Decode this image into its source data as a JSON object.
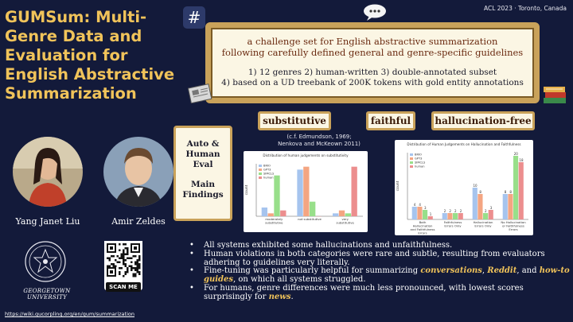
{
  "title": "GUMSum: Multi-Genre Data and Evaluation for English Abstractive Summarization",
  "venue": "ACL 2023 · Toronto, Canada",
  "scroll": {
    "line1": "a challenge set for English abstractive summarization",
    "line2": "following carefully defined general and genre-specific guidelines",
    "line3": "1) 12 genres 2) human-written 3) double-annotated subset",
    "line4": "4) based on a UD treebank of 200K tokens with gold entity annotations"
  },
  "chips": {
    "c1": "substitutive",
    "c2": "faithful",
    "c3": "hallucination-free"
  },
  "citation": {
    "l1": "(c.f. Edmundson, 1969;",
    "l2": "Nenkova and McKeown 2011)"
  },
  "eval_box": {
    "l1": "Auto &",
    "l2": "Human",
    "l3": "Eval",
    "l4": "Main",
    "l5": "Findings"
  },
  "people": {
    "p1": "Yang Janet Liu",
    "p2": "Amir Zeldes"
  },
  "university": "GEORGETOWN UNIVERSITY",
  "scan_label": "SCAN ME",
  "url": "https://wiki.gucorpling.org/en/gum/summarization",
  "icons": {
    "hash": "hash-icon",
    "speech": "speech-bubble-icon",
    "newspaper": "newspaper-icon",
    "books": "books-icon"
  },
  "colors": {
    "accent": "#f0c35a",
    "bg": "#131a3a",
    "blue": "#a6c4ee",
    "orange": "#f4a582",
    "green": "#98df8a",
    "red": "#ec8e8e"
  },
  "bullets": {
    "b1": "All systems exhibited some hallucinations and unfaithfulness.",
    "b2": "Human violations in both categories were rare and subtle, resulting from evaluators adhering to guidelines very literally.",
    "b3_a": "Fine-tuning was particularly helpful for summarizing ",
    "b3_conv": "conversations",
    "b3_sep1": ", ",
    "b3_reddit": "Reddit",
    "b3_sep2": ", and ",
    "b3_howto": "how-to guides",
    "b3_b": ", on which all systems struggled.",
    "b4_a": "For humans, genre differences were much less pronounced, with lowest scores surprisingly for ",
    "b4_news": "news",
    "b4_b": "."
  },
  "chart_data": [
    {
      "type": "bar",
      "title": "Distribution of human judgements on substitutivity",
      "ylabel": "count",
      "categories": [
        "moderately substitutive",
        "not substitutive",
        "very substitutive"
      ],
      "series": [
        {
          "name": "BRIO",
          "values": [
            3,
            16,
            1
          ]
        },
        {
          "name": "GPT3",
          "values": [
            1,
            17,
            2
          ]
        },
        {
          "name": "SIMCLS",
          "values": [
            14,
            5,
            1
          ]
        },
        {
          "name": "human",
          "values": [
            2,
            0,
            17
          ]
        }
      ],
      "ylim": [
        0,
        18
      ]
    },
    {
      "type": "bar",
      "title": "Distribution of Human Judgements on Hallucination and Faithfulness",
      "ylabel": "count",
      "categories": [
        "Both Hallucination and Faithfulness Errors",
        "Faithfulness Errors Only",
        "Hallucination Errors Only",
        "No Hallucination or Faithfulness Errors"
      ],
      "series": [
        {
          "name": "BRIO",
          "values": [
            4,
            2,
            10,
            8
          ]
        },
        {
          "name": "GPT3",
          "values": [
            4,
            2,
            8,
            8
          ]
        },
        {
          "name": "SIMCLS",
          "values": [
            3,
            2,
            2,
            20
          ]
        },
        {
          "name": "human",
          "values": [
            1,
            2,
            3,
            18
          ]
        }
      ],
      "ylim": [
        0,
        21
      ]
    }
  ]
}
